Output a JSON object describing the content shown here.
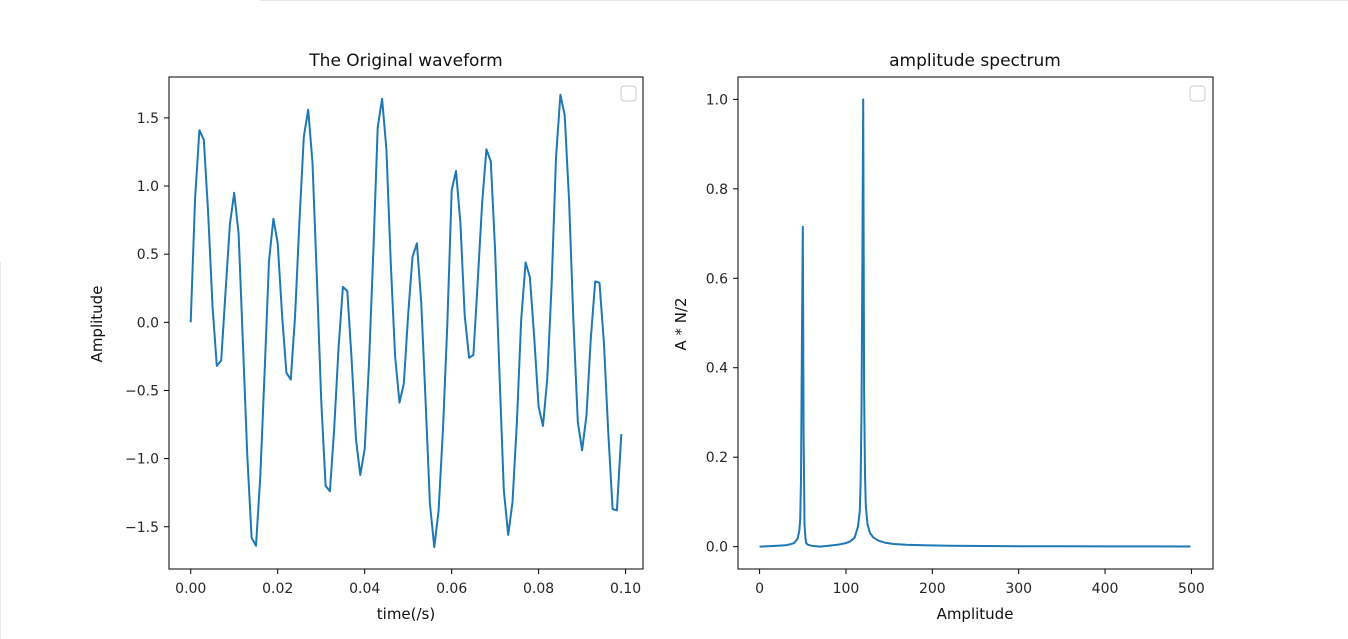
{
  "colors": {
    "line": "#1f77b4",
    "axes": "#000000",
    "legend_border": "#cccccc"
  },
  "chart_data": [
    {
      "type": "line",
      "title": "The Original waveform",
      "xlabel": "time(/s)",
      "ylabel": "Amplitude",
      "xlim": [
        -0.005,
        0.104
      ],
      "ylim": [
        -1.81,
        1.8
      ],
      "xticks": [
        0.0,
        0.02,
        0.04,
        0.06,
        0.08,
        0.1
      ],
      "xtick_labels": [
        "0.00",
        "0.02",
        "0.04",
        "0.06",
        "0.08",
        "0.10"
      ],
      "yticks": [
        -1.5,
        -1.0,
        -0.5,
        0.0,
        0.5,
        1.0,
        1.5
      ],
      "ytick_labels": [
        "−1.5",
        "−1.0",
        "−0.5",
        "0.0",
        "0.5",
        "1.0",
        "1.5"
      ],
      "legend": "top-right (empty)",
      "grid": false,
      "x": [
        0.0,
        0.001,
        0.002,
        0.003,
        0.004,
        0.005,
        0.006,
        0.007,
        0.008,
        0.009,
        0.01,
        0.011,
        0.012,
        0.013,
        0.014,
        0.015,
        0.016,
        0.017,
        0.018,
        0.019,
        0.02,
        0.021,
        0.022,
        0.023,
        0.024,
        0.025,
        0.026,
        0.027,
        0.028,
        0.029,
        0.03,
        0.031,
        0.032,
        0.033,
        0.034,
        0.035,
        0.036,
        0.037,
        0.038,
        0.039,
        0.04,
        0.041,
        0.042,
        0.043,
        0.044,
        0.045,
        0.046,
        0.047,
        0.048,
        0.049,
        0.05,
        0.051,
        0.052,
        0.053,
        0.054,
        0.055,
        0.056,
        0.057,
        0.058,
        0.059,
        0.06,
        0.061,
        0.062,
        0.063,
        0.064,
        0.065,
        0.066,
        0.067,
        0.068,
        0.069,
        0.07,
        0.071,
        0.072,
        0.073,
        0.074,
        0.075,
        0.076,
        0.077,
        0.078,
        0.079,
        0.08,
        0.081,
        0.082,
        0.083,
        0.084,
        0.085,
        0.086,
        0.087,
        0.088,
        0.089,
        0.09,
        0.091,
        0.092,
        0.093,
        0.094,
        0.095,
        0.096,
        0.097,
        0.098,
        0.099
      ],
      "y": [
        0.0,
        0.91,
        1.41,
        1.34,
        0.81,
        0.12,
        -0.32,
        -0.28,
        0.22,
        0.72,
        0.95,
        0.65,
        -0.15,
        -0.98,
        -1.58,
        -1.64,
        -1.13,
        -0.35,
        0.45,
        0.76,
        0.58,
        0.05,
        -0.37,
        -0.42,
        0.05,
        0.75,
        1.36,
        1.56,
        1.17,
        0.32,
        -0.57,
        -1.2,
        -1.24,
        -0.78,
        -0.18,
        0.26,
        0.23,
        -0.27,
        -0.86,
        -1.12,
        -0.93,
        -0.3,
        0.53,
        1.43,
        1.64,
        1.27,
        0.43,
        -0.25,
        -0.59,
        -0.45,
        0.06,
        0.48,
        0.58,
        0.15,
        -0.58,
        -1.33,
        -1.65,
        -1.38,
        -0.78,
        -0.02,
        0.97,
        1.11,
        0.73,
        0.05,
        -0.26,
        -0.24,
        0.31,
        0.87,
        1.27,
        1.18,
        0.53,
        -0.38,
        -1.23,
        -1.56,
        -1.32,
        -0.73,
        0.02,
        0.44,
        0.33,
        -0.12,
        -0.62,
        -0.76,
        -0.41,
        0.29,
        1.21,
        1.67,
        1.52,
        0.89,
        0.01,
        -0.73,
        -0.94,
        -0.68,
        -0.12,
        0.3,
        0.29,
        -0.15,
        -0.8,
        -1.37,
        -1.38,
        -0.82
      ]
    },
    {
      "type": "line",
      "title": "amplitude spectrum",
      "xlabel": "Amplitude",
      "ylabel": "A * N/2",
      "xlim": [
        -25,
        525
      ],
      "ylim": [
        -0.05,
        1.05
      ],
      "xticks": [
        0,
        100,
        200,
        300,
        400,
        500
      ],
      "xtick_labels": [
        "0",
        "100",
        "200",
        "300",
        "400",
        "500"
      ],
      "yticks": [
        0.0,
        0.2,
        0.4,
        0.6,
        0.8,
        1.0
      ],
      "ytick_labels": [
        "0.0",
        "0.2",
        "0.4",
        "0.6",
        "0.8",
        "1.0"
      ],
      "legend": "top-right (empty)",
      "grid": false,
      "x": [
        0,
        10,
        20,
        30,
        35,
        40,
        44,
        46,
        47,
        48,
        49,
        50,
        51,
        52,
        53,
        54,
        56,
        60,
        70,
        80,
        90,
        100,
        105,
        110,
        114,
        116,
        117,
        118,
        119,
        120,
        121,
        122,
        123,
        125,
        128,
        132,
        138,
        145,
        155,
        170,
        190,
        220,
        260,
        300,
        350,
        400,
        450,
        499
      ],
      "y": [
        0.0,
        0.001,
        0.002,
        0.003,
        0.005,
        0.008,
        0.018,
        0.035,
        0.06,
        0.15,
        0.45,
        0.715,
        0.25,
        0.05,
        0.02,
        0.008,
        0.004,
        0.002,
        0.0,
        0.002,
        0.004,
        0.008,
        0.012,
        0.02,
        0.045,
        0.08,
        0.14,
        0.3,
        0.65,
        1.0,
        0.35,
        0.16,
        0.09,
        0.05,
        0.03,
        0.02,
        0.013,
        0.009,
        0.006,
        0.004,
        0.003,
        0.002,
        0.0015,
        0.001,
        0.0008,
        0.0006,
        0.0005,
        0.0004
      ]
    }
  ]
}
